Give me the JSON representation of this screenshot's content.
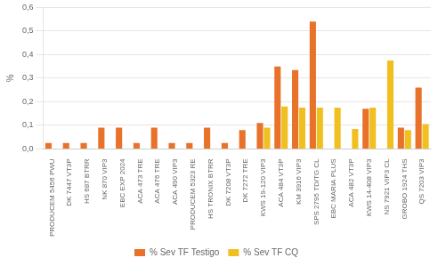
{
  "chart_data": {
    "type": "bar",
    "categories": [
      "PRODUCEM 5456 PWU",
      "DK 7447 VT3P",
      "HS 687 BTRR",
      "NK 870 VIP3",
      "EBC EXP 2024",
      "ACA 473 TRE",
      "ACA 476 TRE",
      "ACA 490 VIP3",
      "PRODUCEM 5323 RE",
      "HS TRONIX BTRR",
      "DK 7208 VT3P",
      "DK 7272 TRE",
      "KWS 19-120 VIP3",
      "ACA 484 VT3P",
      "KM 3916 VIP3",
      "SPS 2795 TD/TG CL",
      "EBC MARIA PLUS",
      "ACA 482 VT3P",
      "KWS 14-408 VIP3",
      "NS 7921 VIP3 CL",
      "GROBO 1924 THS",
      "QS 7203 VIP3"
    ],
    "series": [
      {
        "name": "% Sev TF Testigo",
        "color": "#E8722A",
        "values": [
          0.025,
          0.025,
          0.025,
          0.09,
          0.09,
          0.025,
          0.09,
          0.025,
          0.025,
          0.09,
          0.025,
          0.08,
          0.11,
          0.35,
          0.335,
          0.54,
          0.0,
          0.0,
          0.17,
          0.0,
          0.09,
          0.26
        ]
      },
      {
        "name": "% Sev TF CQ",
        "color": "#F0C020",
        "values": [
          0.0,
          0.0,
          0.0,
          0.0,
          0.0,
          0.0,
          0.0,
          0.0,
          0.0,
          0.0,
          0.0,
          0.0,
          0.09,
          0.18,
          0.175,
          0.175,
          0.175,
          0.085,
          0.175,
          0.375,
          0.08,
          0.105
        ]
      }
    ],
    "ylabel": "%",
    "ylim": [
      0,
      0.6
    ],
    "yticks": [
      {
        "value": 0.0,
        "label": "0,0"
      },
      {
        "value": 0.1,
        "label": "0,1"
      },
      {
        "value": 0.2,
        "label": "0,2"
      },
      {
        "value": 0.3,
        "label": "0,3"
      },
      {
        "value": 0.4,
        "label": "0,4"
      },
      {
        "value": 0.5,
        "label": "0,5"
      },
      {
        "value": 0.6,
        "label": "0,6"
      }
    ],
    "grid": true,
    "legend": "bottom"
  }
}
